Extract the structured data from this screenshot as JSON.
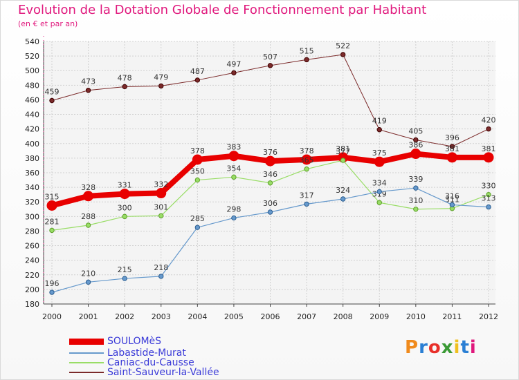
{
  "title": "Evolution de la Dotation Globale de Fonctionnement par Habitant",
  "subtitle": "(en € et par an)",
  "brand": {
    "name": "Proxiti",
    "letters": [
      "P",
      "r",
      "o",
      "x",
      "i",
      "t",
      "i"
    ],
    "colors": [
      "#f08a1c",
      "#2a7fd4",
      "#e8302a",
      "#3a9a35",
      "#f0c020",
      "#2a7fd4",
      "#e0187d"
    ]
  },
  "chart_data": {
    "type": "line",
    "x": [
      "2000",
      "2001",
      "2002",
      "2003",
      "2004",
      "2005",
      "2006",
      "2007",
      "2008",
      "2009",
      "2010",
      "2011",
      "2012"
    ],
    "ylim": [
      180,
      540
    ],
    "yticks": [
      180,
      200,
      220,
      240,
      260,
      280,
      300,
      320,
      340,
      360,
      380,
      400,
      420,
      440,
      460,
      480,
      500,
      520,
      540
    ],
    "grid": true,
    "legend_position": "bottom-left",
    "series": [
      {
        "name": "Saint-Sauveur-la-Vallée",
        "color": "#7b2a2a",
        "width": 1,
        "labels": true,
        "values": [
          459,
          473,
          478,
          479,
          487,
          497,
          507,
          515,
          522,
          419,
          405,
          396,
          420
        ]
      },
      {
        "name": "SOULOMèS",
        "color": "#e80000",
        "width": 8,
        "labels": true,
        "values": [
          315,
          328,
          331,
          332,
          378,
          383,
          376,
          378,
          381,
          375,
          386,
          381,
          381
        ]
      },
      {
        "name": "Caniac-du-Causse",
        "color": "#99dd66",
        "width": 1.2,
        "labels": true,
        "values": [
          281,
          288,
          300,
          301,
          350,
          354,
          346,
          365,
          377,
          319,
          310,
          311,
          330
        ]
      },
      {
        "name": "Labastide-Murat",
        "color": "#6699cc",
        "width": 1.2,
        "labels": true,
        "values": [
          196,
          210,
          215,
          218,
          285,
          298,
          306,
          317,
          324,
          334,
          339,
          316,
          313
        ]
      }
    ],
    "legend_order": [
      "SOULOMèS",
      "Labastide-Murat",
      "Caniac-du-Causse",
      "Saint-Sauveur-la-Vallée"
    ]
  }
}
